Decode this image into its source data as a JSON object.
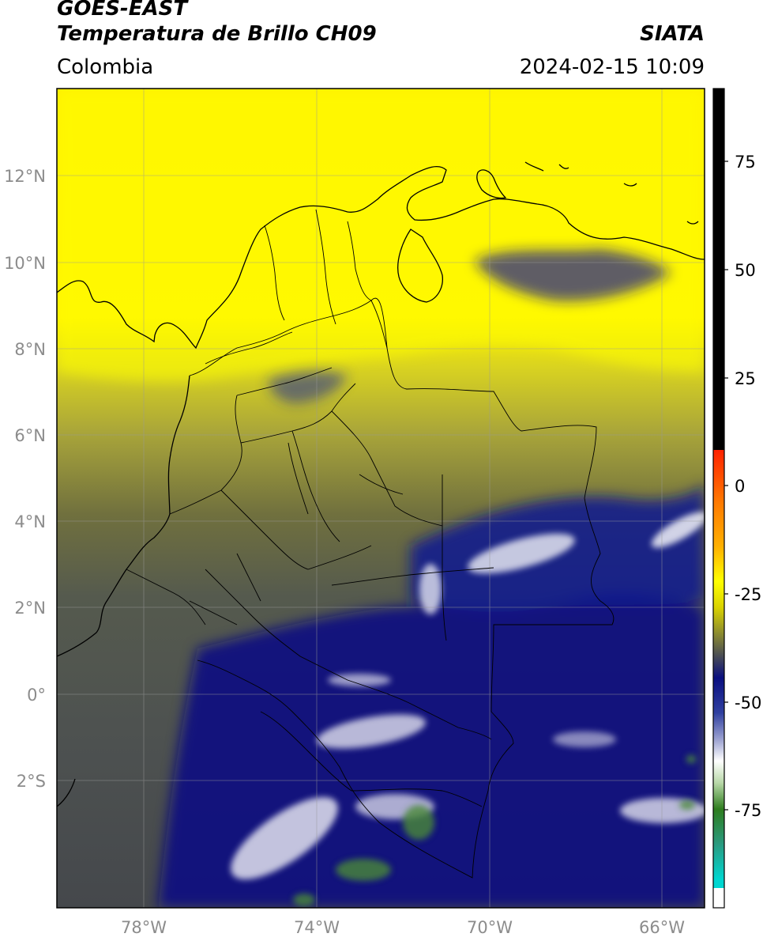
{
  "header": {
    "satellite": "GOES-EAST",
    "product": "Temperatura de Brillo CH09",
    "organization": "SIATA",
    "region": "Colombia",
    "datetime": "2024-02-15 10:09"
  },
  "map": {
    "lat_labels": [
      "12°N",
      "10°N",
      "8°N",
      "6°N",
      "4°N",
      "2°N",
      "0°",
      "2°S"
    ],
    "lon_labels": [
      "78°W",
      "74°W",
      "70°W",
      "66°W"
    ]
  },
  "colorbar": {
    "tick_labels": [
      "75",
      "50",
      "25",
      "0",
      "-25",
      "-50",
      "-75"
    ],
    "colors": {
      "black": "#000000",
      "red": "#ff2200",
      "orange": "#ff9900",
      "yellow": "#ffff00",
      "olive": "#6f6f2a",
      "gray": "#4a4d55",
      "navy": "#0a0f80",
      "white": "#ffffff",
      "green": "#2e7d1e",
      "cyan": "#00d6d0"
    }
  }
}
